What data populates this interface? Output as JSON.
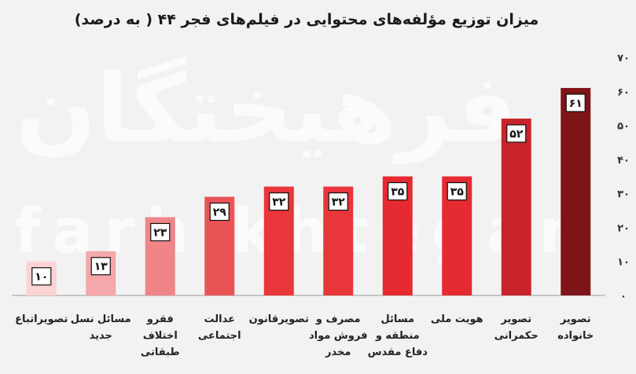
{
  "chart_data": {
    "type": "bar",
    "title": "میزان توزیع مؤلفه‌های محتوایی در فیلم‌های فجر ۴۴ ( به درصد)",
    "watermark": [
      "فرهیختگان",
      "farhikhtegan"
    ],
    "ylim": [
      0,
      70
    ],
    "yticks": [
      0,
      10,
      20,
      30,
      40,
      50,
      60,
      70
    ],
    "ytick_labels": [
      "۰",
      "۱۰",
      "۲۰",
      "۳۰",
      "۴۰",
      "۵۰",
      "۶۰",
      "۷۰"
    ],
    "grid": false,
    "categories": [
      [
        "تصویراتباع"
      ],
      [
        "مسائل نسل",
        "جدید"
      ],
      [
        "فقرو",
        "اختلاف",
        "طبقاتی"
      ],
      [
        "عدالت",
        "اجتماعی"
      ],
      [
        "تصویرقانون"
      ],
      [
        "مصرف و",
        "فروش مواد",
        "مخدر"
      ],
      [
        "مسائل",
        "منطقه و",
        "دفاع مقدس"
      ],
      [
        "هویت ملی"
      ],
      [
        "تصویر",
        "حکمرانی"
      ],
      [
        "تصویر",
        "خانواده"
      ]
    ],
    "values": [
      10,
      13,
      23,
      29,
      32,
      32,
      35,
      35,
      52,
      61
    ],
    "value_labels": [
      "۱۰",
      "۱۳",
      "۲۳",
      "۲۹",
      "۳۲",
      "۳۲",
      "۳۵",
      "۳۵",
      "۵۲",
      "۶۱"
    ],
    "colors": [
      "#fcd3d3",
      "#f5a7a9",
      "#ef8587",
      "#ea5457",
      "#e8363b",
      "#e8363b",
      "#e52a31",
      "#e52a31",
      "#c9242b",
      "#7e1417"
    ]
  }
}
